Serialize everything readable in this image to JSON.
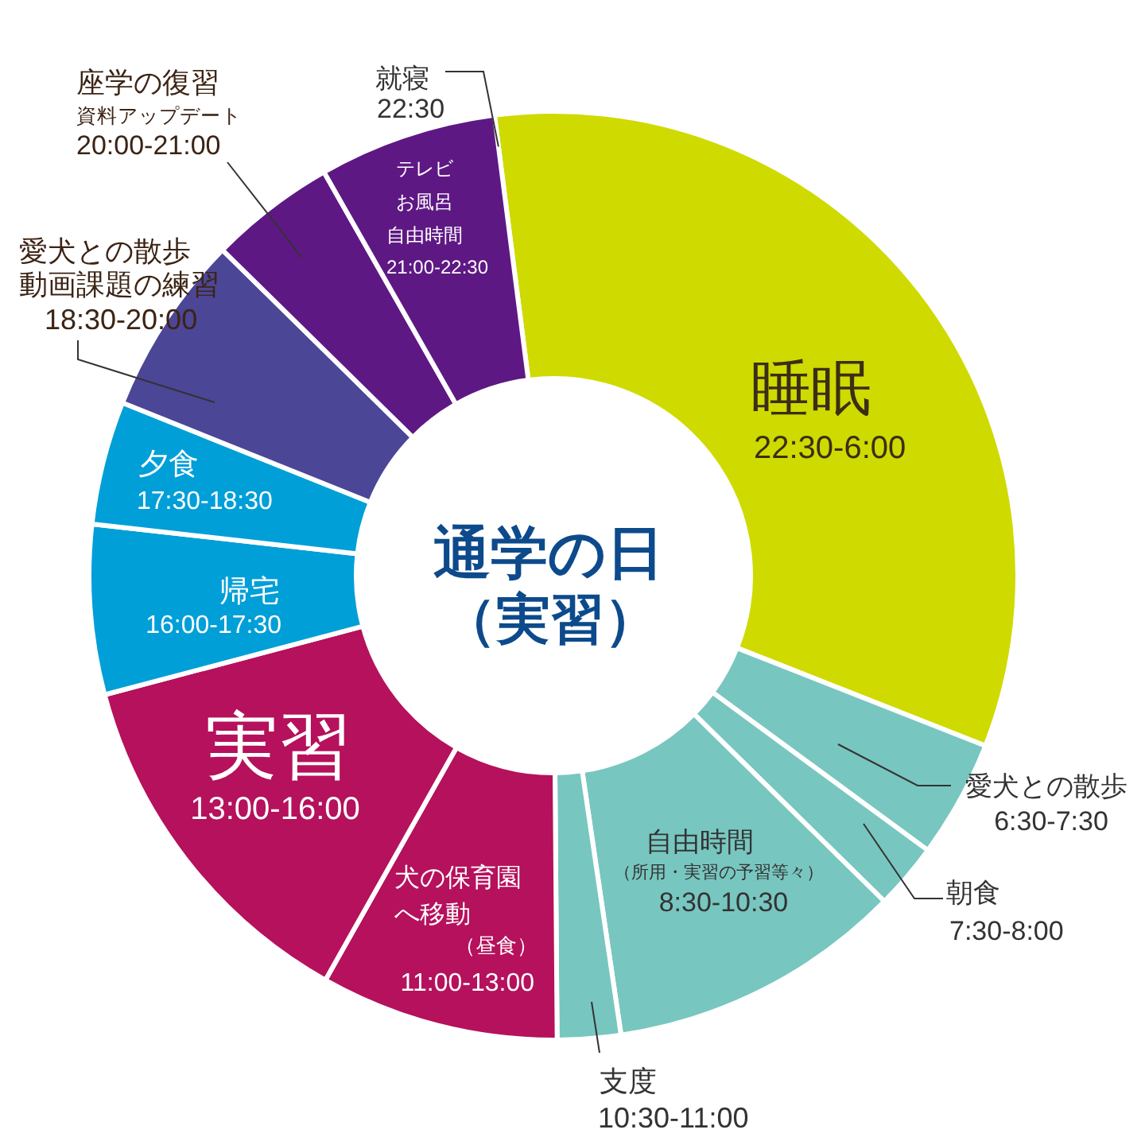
{
  "chart_data": {
    "type": "donut",
    "title": "通学の日（実習）",
    "categories": [
      "睡眠\n22:30-6:00",
      "愛犬との散歩\n6:30-7:30",
      "朝食\n7:30-8:00",
      "自由時間（所用・実習の予習等々）\n8:30-10:30",
      "支度\n10:30-11:00",
      "犬の保育園へ移動（昼食）\n11:00-13:00",
      "実習\n13:00-16:00",
      "帰宅\n16:00-17:30",
      "夕食\n17:30-18:30",
      "愛犬との散歩動画課題の練習\n18:30-20:00",
      "座学の復習資料アップデート\n20:00-21:00",
      "テレビお風呂自由時間\n21:00-22:30"
    ],
    "values": [
      33.0,
      4.1,
      2.3,
      10.3,
      2.2,
      8.3,
      12.7,
      5.9,
      4.3,
      6.3,
      4.4,
      6.2
    ],
    "colors": [
      "#cfda00",
      "#78c6c0",
      "#78c6c0",
      "#78c6c0",
      "#78c6c0",
      "#b5115c",
      "#b5115c",
      "#009fd8",
      "#009fd8",
      "#4c4697",
      "#5e1884",
      "#5e1884"
    ],
    "annotations": [
      "就寝\n22:30"
    ]
  }
}
